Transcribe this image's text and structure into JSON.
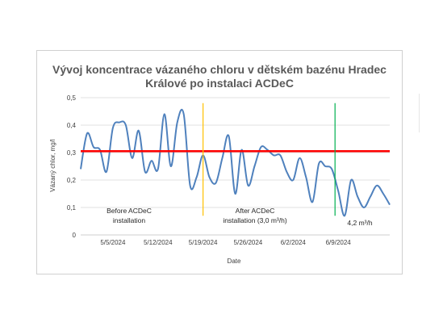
{
  "chart_data": {
    "type": "line",
    "title_line1": "Vývoj koncentrace vázaného chloru v dětském bazénu Hradec",
    "title_line2": "Králové po instalaci ACDeC",
    "xlabel": "Date",
    "ylabel": "Vázaný chlor, mg/l",
    "ylim": [
      0,
      0.5
    ],
    "yticks": [
      "0",
      "0,1",
      "0,2",
      "0,3",
      "0,4",
      "0,5"
    ],
    "xticks": [
      {
        "label": "5/5/2024",
        "date": "2024-05-05"
      },
      {
        "label": "5/12/2024",
        "date": "2024-05-12"
      },
      {
        "label": "5/19/2024",
        "date": "2024-05-19"
      },
      {
        "label": "5/26/2024",
        "date": "2024-05-26"
      },
      {
        "label": "6/2/2024",
        "date": "2024-06-02"
      },
      {
        "label": "6/9/2024",
        "date": "2024-06-09"
      }
    ],
    "xlim": [
      "2024-04-30",
      "2024-06-17"
    ],
    "grid": true,
    "colors": {
      "series": "#4f81bd",
      "limit": "#ff0000",
      "marker1": "#ffc000",
      "marker2": "#00b050"
    },
    "series": [
      {
        "x": [
          "2024-04-30",
          "2024-05-01",
          "2024-05-02",
          "2024-05-03",
          "2024-05-04",
          "2024-05-05",
          "2024-05-06",
          "2024-05-07",
          "2024-05-08",
          "2024-05-09",
          "2024-05-10",
          "2024-05-11",
          "2024-05-12",
          "2024-05-13",
          "2024-05-14",
          "2024-05-15",
          "2024-05-16",
          "2024-05-17",
          "2024-05-18",
          "2024-05-19",
          "2024-05-20",
          "2024-05-21",
          "2024-05-22",
          "2024-05-23",
          "2024-05-24",
          "2024-05-25",
          "2024-05-26",
          "2024-05-27",
          "2024-05-28",
          "2024-05-29",
          "2024-05-30",
          "2024-05-31",
          "2024-06-01",
          "2024-06-02",
          "2024-06-03",
          "2024-06-04",
          "2024-06-05",
          "2024-06-06",
          "2024-06-07",
          "2024-06-08",
          "2024-06-09",
          "2024-06-10",
          "2024-06-11",
          "2024-06-12",
          "2024-06-13",
          "2024-06-14",
          "2024-06-15",
          "2024-06-16",
          "2024-06-17"
        ],
        "values": [
          0.24,
          0.37,
          0.32,
          0.31,
          0.23,
          0.39,
          0.41,
          0.4,
          0.28,
          0.38,
          0.23,
          0.27,
          0.24,
          0.44,
          0.25,
          0.41,
          0.44,
          0.18,
          0.21,
          0.29,
          0.21,
          0.19,
          0.28,
          0.36,
          0.15,
          0.31,
          0.18,
          0.25,
          0.32,
          0.31,
          0.29,
          0.29,
          0.23,
          0.2,
          0.28,
          0.21,
          0.12,
          0.26,
          0.25,
          0.24,
          0.16,
          0.07,
          0.2,
          0.14,
          0.1,
          0.14,
          0.18,
          0.15,
          0.11
        ]
      }
    ],
    "limit_value": 0.305,
    "annotations": [
      {
        "text_line1": "Before ACDeC",
        "text_line2": "installation"
      },
      {
        "text_line1": "After ACDeC",
        "text_line2": "installation (3,0 m³/h)"
      },
      {
        "text_line1": "4,2 m³/h"
      }
    ],
    "markers": [
      {
        "date": "2024-05-18",
        "from": 0.07,
        "to": 0.48
      },
      {
        "date": "2024-06-08",
        "from": 0.07,
        "to": 0.48
      }
    ]
  }
}
